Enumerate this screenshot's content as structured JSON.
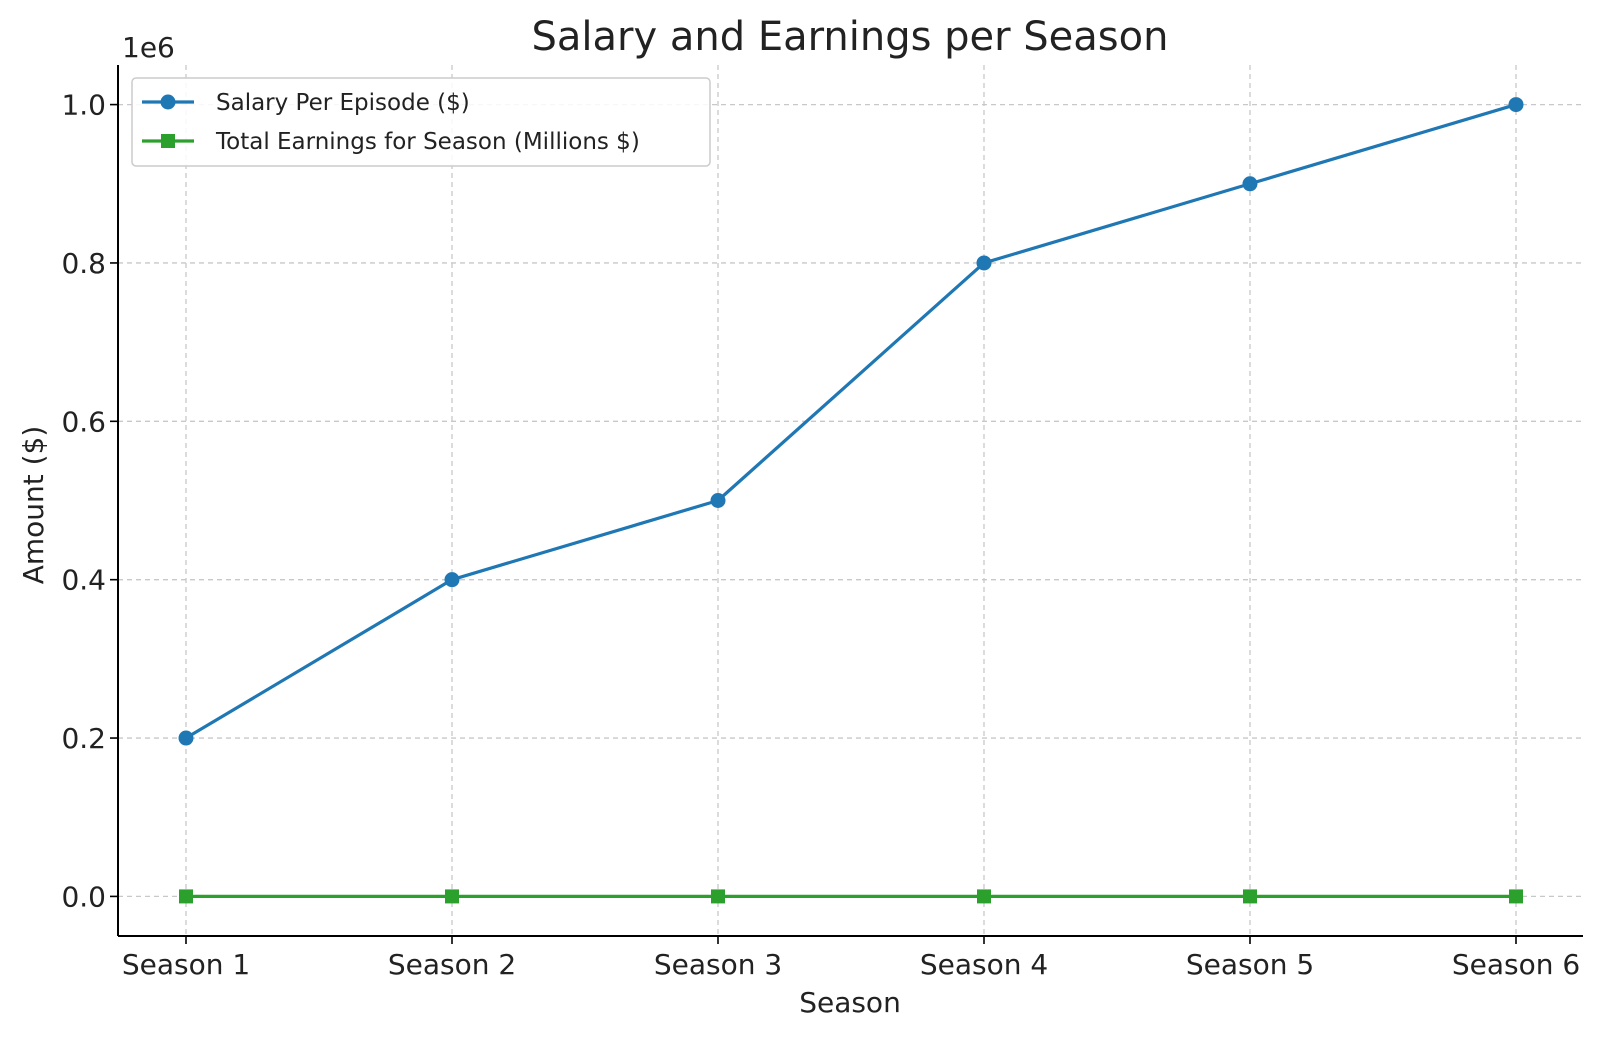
{
  "chart_data": {
    "type": "line",
    "title": "Salary and Earnings per Season",
    "xlabel": "Season",
    "ylabel": "Amount ($)",
    "y_offset_label": "1e6",
    "categories": [
      "Season 1",
      "Season 2",
      "Season 3",
      "Season 4",
      "Season 5",
      "Season 6"
    ],
    "series": [
      {
        "name": "Salary Per Episode ($)",
        "values": [
          200000,
          400000,
          500000,
          800000,
          900000,
          1000000
        ],
        "color": "#1f77b4",
        "marker": "circle"
      },
      {
        "name": "Total Earnings for Season (Millions $)",
        "values": [
          0,
          0,
          0,
          0,
          0,
          0
        ],
        "color": "#2ca02c",
        "marker": "square"
      }
    ],
    "ylim": [
      -50000,
      1050000
    ],
    "yticks": [
      0,
      200000,
      400000,
      600000,
      800000,
      1000000
    ],
    "ytick_labels": [
      "0.0",
      "0.2",
      "0.4",
      "0.6",
      "0.8",
      "1.0"
    ],
    "grid": true,
    "legend_position": "top-left"
  }
}
